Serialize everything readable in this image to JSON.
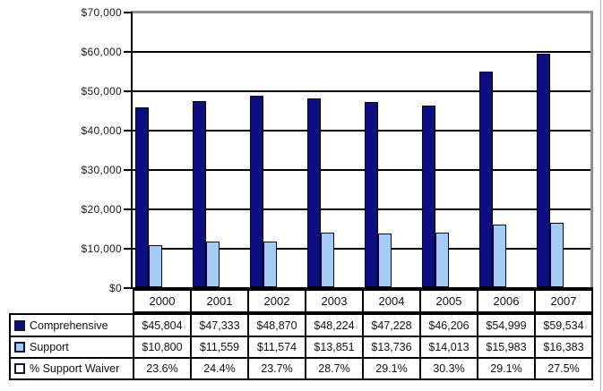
{
  "chart_data": {
    "type": "bar",
    "title": "",
    "xlabel": "",
    "ylabel": "",
    "categories": [
      "2000",
      "2001",
      "2002",
      "2003",
      "2004",
      "2005",
      "2006",
      "2007"
    ],
    "series": [
      {
        "name": "Comprehensive",
        "color": "#0d0d80",
        "values": [
          45804,
          47333,
          48870,
          48224,
          47228,
          46206,
          54999,
          59534
        ]
      },
      {
        "name": "Support",
        "color": "#a3ccf5",
        "values": [
          10800,
          11559,
          11574,
          13851,
          13736,
          14013,
          15983,
          16383
        ]
      }
    ],
    "ylim": [
      0,
      70000
    ],
    "ytick_step": 10000,
    "ytick_labels": [
      "$0",
      "$10,000",
      "$20,000",
      "$30,000",
      "$40,000",
      "$50,000",
      "$60,000",
      "$70,000"
    ],
    "grid": true,
    "legend_position": "table-left-of-data-rows"
  },
  "table": {
    "year_header": [
      "2000",
      "2001",
      "2002",
      "2003",
      "2004",
      "2005",
      "2006",
      "2007"
    ],
    "rows": [
      {
        "label": "Comprehensive",
        "marker": "navy-filled-square",
        "marker_fill": "#0d0d80",
        "values": [
          "$45,804",
          "$47,333",
          "$48,870",
          "$48,224",
          "$47,228",
          "$46,206",
          "$54,999",
          "$59,534"
        ]
      },
      {
        "label": "Support",
        "marker": "lightblue-filled-square",
        "marker_fill": "#a3ccf5",
        "values": [
          "$10,800",
          "$11,559",
          "$11,574",
          "$13,851",
          "$13,736",
          "$14,013",
          "$15,983",
          "$16,383"
        ]
      },
      {
        "label": "% Support Waiver",
        "marker": "white-outline-square",
        "marker_fill": "#ffffff",
        "values": [
          "23.6%",
          "24.4%",
          "23.7%",
          "28.7%",
          "29.1%",
          "30.3%",
          "29.1%",
          "27.5%"
        ]
      }
    ]
  },
  "colors": {
    "bar_dark": "#0d0d80",
    "bar_light": "#a3ccf5",
    "bar_border": "#00002e",
    "gridline": "#000000",
    "plot_shadow_border": "#909090",
    "axis": "#000000",
    "table_border": "#000000",
    "cell_bg": "#ffffff",
    "window_edge": "#b2b2b2"
  }
}
